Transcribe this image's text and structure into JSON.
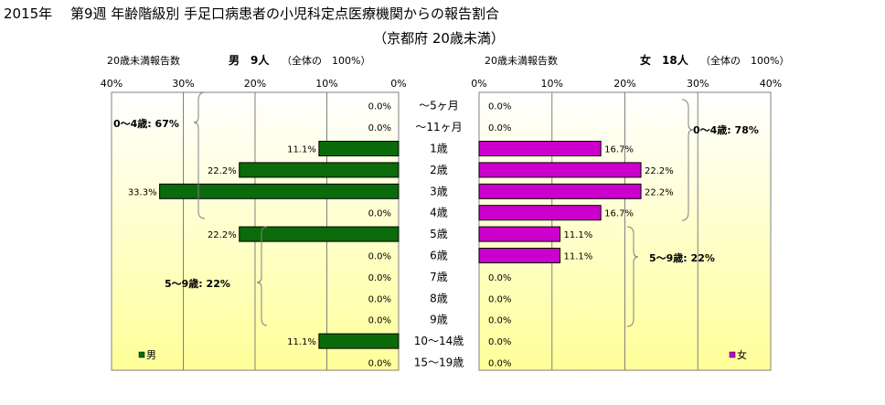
{
  "page": {
    "title": "2015年　 第9週 年齢階級別 手足口病患者の小児科定点医療機関からの報告割合",
    "subtitle": "（京都府 20歳未満）"
  },
  "left_panel": {
    "header_label": "20歳未満報告数",
    "header_total": "男　9人",
    "header_note": "（全体の　100%）",
    "ticks": [
      "40%",
      "30%",
      "20%",
      "10%",
      "0%"
    ],
    "legend_label": "男",
    "bracket_0_4": "0～4歳: 67%",
    "bracket_5_9": "5～9歳: 22%"
  },
  "right_panel": {
    "header_label": "20歳未満報告数",
    "header_total": "女　18人",
    "header_note": "（全体の　100%）",
    "ticks": [
      "0%",
      "10%",
      "20%",
      "30%",
      "40%"
    ],
    "legend_label": "女",
    "bracket_0_4": "0～4歳: 78%",
    "bracket_5_9": "5～9歳: 22%"
  },
  "colors": {
    "male": "#0b6b0b",
    "female": "#cc00cc",
    "background_top": "#ffffff",
    "background_bottom": "#ffff99"
  },
  "chart_data": [
    {
      "type": "bar",
      "orientation": "horizontal",
      "series": [
        {
          "name": "男",
          "values": [
            0.0,
            0.0,
            11.1,
            22.2,
            33.3,
            0.0,
            22.2,
            0.0,
            0.0,
            0.0,
            0.0,
            11.1,
            0.0
          ]
        }
      ],
      "categories": [
        "～5ヶ月",
        "～11ヶ月",
        "1歳",
        "2歳",
        "3歳",
        "4歳",
        "5歳",
        "6歳",
        "7歳",
        "8歳",
        "9歳",
        "10～14歳",
        "15～19歳"
      ],
      "data_labels": [
        "0.0%",
        "0.0%",
        "11.1%",
        "22.2%",
        "33.3%",
        "0.0%",
        "22.2%",
        "0.0%",
        "0.0%",
        "0.0%",
        "0.0%",
        "11.1%",
        "0.0%"
      ],
      "xlim": [
        0,
        40
      ],
      "direction": "reversed",
      "grid": true,
      "legend": "bottom-left"
    },
    {
      "type": "bar",
      "orientation": "horizontal",
      "series": [
        {
          "name": "女",
          "values": [
            0.0,
            0.0,
            16.7,
            22.2,
            22.2,
            16.7,
            11.1,
            11.1,
            0.0,
            0.0,
            0.0,
            0.0,
            0.0
          ]
        }
      ],
      "categories": [
        "～5ヶ月",
        "～11ヶ月",
        "1歳",
        "2歳",
        "3歳",
        "4歳",
        "5歳",
        "6歳",
        "7歳",
        "8歳",
        "9歳",
        "10～14歳",
        "15～19歳"
      ],
      "data_labels": [
        "0.0%",
        "0.0%",
        "16.7%",
        "22.2%",
        "22.2%",
        "16.7%",
        "11.1%",
        "11.1%",
        "0.0%",
        "0.0%",
        "0.0%",
        "0.0%",
        "0.0%"
      ],
      "xlim": [
        0,
        40
      ],
      "direction": "normal",
      "grid": true,
      "legend": "bottom-right"
    }
  ]
}
